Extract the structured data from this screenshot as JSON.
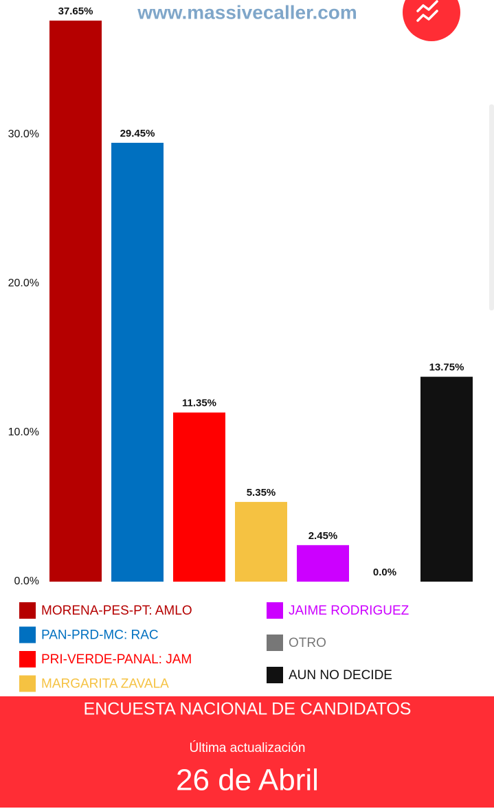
{
  "header": {
    "site": "www.massivecaller.com"
  },
  "chart_data": {
    "type": "bar",
    "categories": [
      "MORENA-PES-PT: AMLO",
      "PAN-PRD-MC: RAC",
      "PRI-VERDE-PANAL: JAM",
      "MARGARITA ZAVALA",
      "JAIME RODRIGUEZ",
      "OTRO",
      "AUN NO DECIDE"
    ],
    "values": [
      37.65,
      29.45,
      11.35,
      5.35,
      2.45,
      0,
      13.75
    ],
    "value_labels": [
      "37.65%",
      "29.45%",
      "11.35%",
      "5.35%",
      "2.45%",
      "0.0%",
      "13.75%"
    ],
    "colors": [
      "#b50000",
      "#0070c0",
      "#ff0000",
      "#f5c242",
      "#cc00ff",
      "#777777",
      "#111111"
    ],
    "ylim": [
      0,
      38
    ],
    "yticks": [
      {
        "value": 0,
        "label": "0.0%"
      },
      {
        "value": 10,
        "label": "10.0%"
      },
      {
        "value": 20,
        "label": "20.0%"
      },
      {
        "value": 30,
        "label": "30.0%"
      }
    ],
    "grid": false
  },
  "footer": {
    "title": "ENCUESTA NACIONAL DE CANDIDATOS",
    "subtitle": "Última actualización",
    "date": "26 de Abril"
  }
}
